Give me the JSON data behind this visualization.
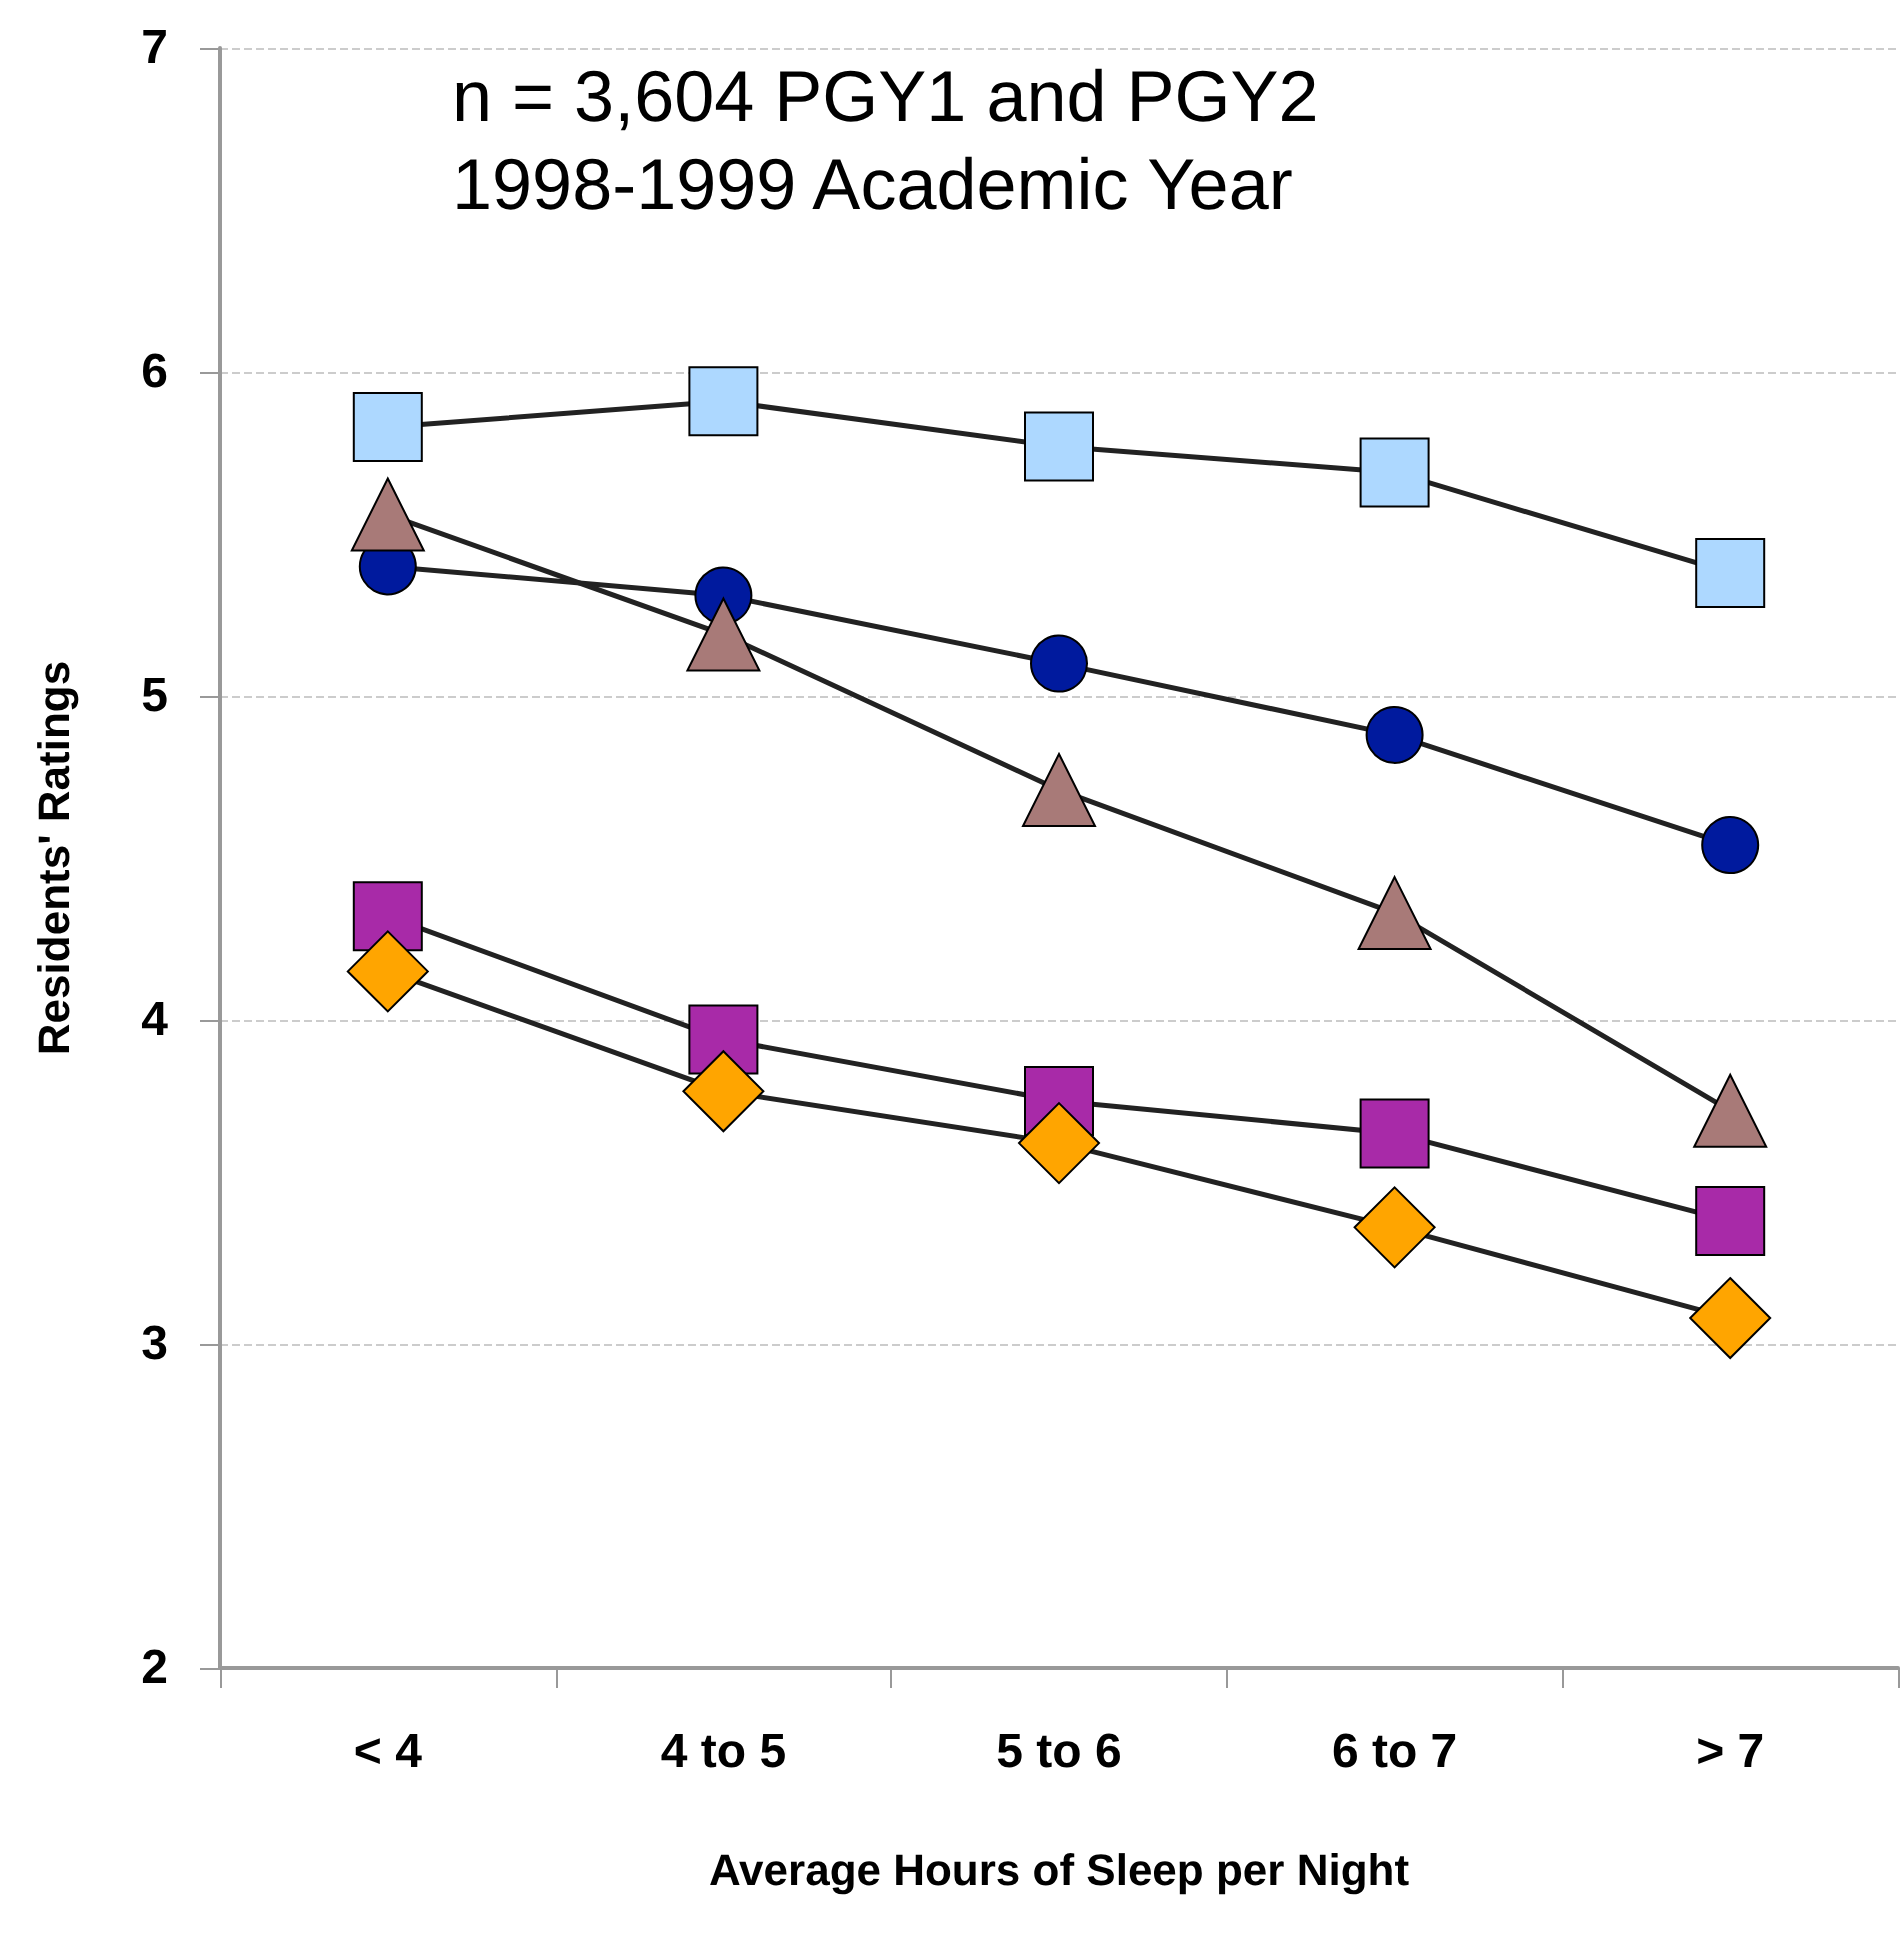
{
  "chart_data": {
    "type": "line",
    "annotations": [
      "n = 3,604 PGY1 and PGY2",
      "1998-1999 Academic Year"
    ],
    "xlabel": "Average Hours of Sleep per Night",
    "ylabel": "Residents' Ratings",
    "categories": [
      "< 4",
      "4 to 5",
      "5 to 6",
      "6 to 7",
      "> 7"
    ],
    "ylim": [
      2,
      7
    ],
    "yticks": [
      2,
      3,
      4,
      5,
      6,
      7
    ],
    "grid": "y",
    "line_style": "solid",
    "series": [
      {
        "color": "#add8ff",
        "marker": "square",
        "values": [
          5.83,
          5.91,
          5.77,
          5.69,
          5.38
        ]
      },
      {
        "color": "#001a9e",
        "marker": "circle",
        "values": [
          5.4,
          5.31,
          5.1,
          4.88,
          4.54
        ]
      },
      {
        "color": "#a87a78",
        "marker": "triangle",
        "values": [
          5.56,
          5.19,
          4.71,
          4.33,
          3.72
        ]
      },
      {
        "color": "#a82aa8",
        "marker": "square",
        "values": [
          4.32,
          3.94,
          3.75,
          3.65,
          3.38
        ]
      },
      {
        "color": "#ffa500",
        "marker": "diamond",
        "values": [
          4.15,
          3.78,
          3.62,
          3.36,
          3.08
        ]
      }
    ]
  }
}
